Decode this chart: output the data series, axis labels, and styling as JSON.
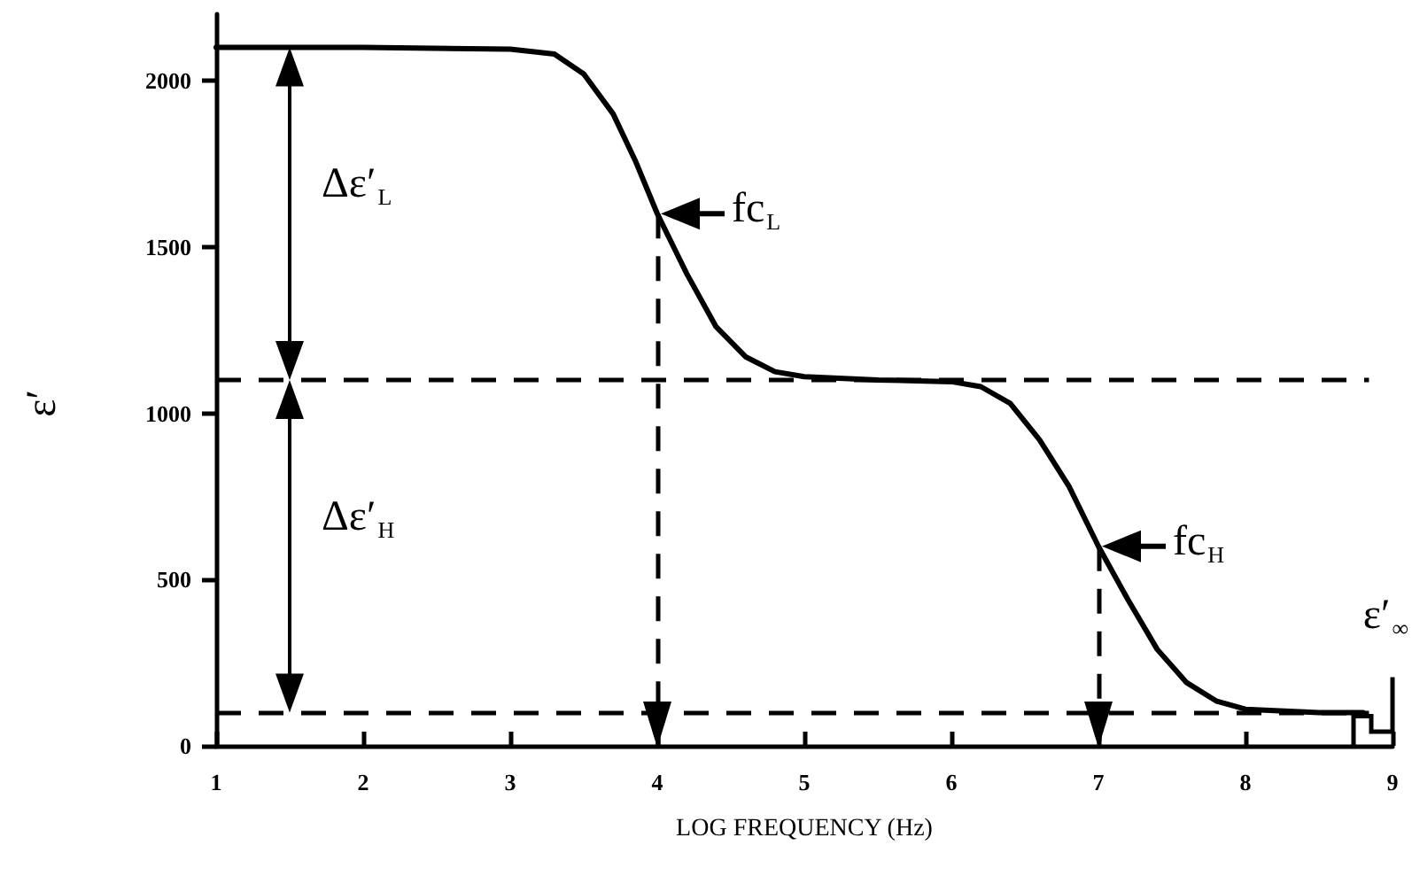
{
  "chart_data": {
    "type": "line",
    "xlabel": "LOG FREQUENCY (Hz)",
    "ylabel": "ε′",
    "x": [
      1,
      2,
      3,
      3.3,
      3.5,
      3.7,
      3.85,
      4,
      4.2,
      4.4,
      4.6,
      4.8,
      5,
      5.5,
      6,
      6.2,
      6.4,
      6.6,
      6.8,
      7,
      7.2,
      7.4,
      7.6,
      7.8,
      8,
      8.5,
      8.8
    ],
    "series": [
      {
        "color": "#000000",
        "values": [
          2100,
          2100,
          2095,
          2080,
          2020,
          1900,
          1760,
          1600,
          1420,
          1260,
          1170,
          1125,
          1110,
          1100,
          1095,
          1080,
          1030,
          920,
          780,
          600,
          440,
          290,
          190,
          135,
          110,
          100,
          100
        ]
      }
    ],
    "xlim": [
      1,
      9
    ],
    "xticks": [
      1,
      2,
      3,
      4,
      5,
      6,
      7,
      8,
      9
    ],
    "ylim": [
      0,
      2200
    ],
    "yticks": [
      0,
      500,
      1000,
      1500,
      2000
    ],
    "grid": false,
    "marker": "none",
    "line_style": "solid",
    "ref_lines": [
      {
        "axis": "y",
        "value": 1100,
        "line_style": "dashed"
      },
      {
        "axis": "y",
        "value": 100,
        "line_style": "dashed"
      },
      {
        "axis": "x",
        "value": 4,
        "line_style": "dashed"
      },
      {
        "axis": "x",
        "value": 7,
        "line_style": "dashed"
      }
    ],
    "annotations": [
      "Δε′$_{L}$",
      "Δε′$_{H}$",
      {
        "text": "fc$_{L}$",
        "x": 4,
        "y": 1600
      },
      {
        "text": "fc$_{H}$",
        "x": 7,
        "y": 600
      },
      "ε′$_{∞}$"
    ]
  }
}
